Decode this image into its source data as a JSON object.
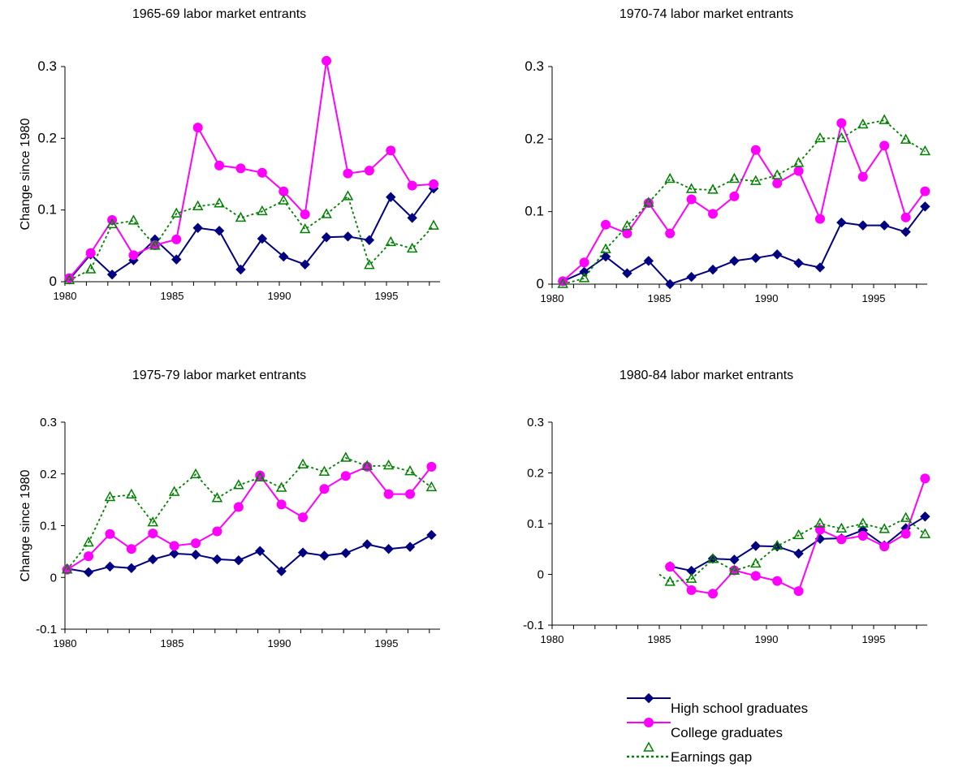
{
  "colors": {
    "high_school": "#000080",
    "college": "#FF00FF",
    "gap": "#008000",
    "axis": "#000000"
  },
  "legend": {
    "items": [
      {
        "key": "hs",
        "label": "High school graduates"
      },
      {
        "key": "col",
        "label": "College graduates"
      },
      {
        "key": "gap",
        "label": "Earnings gap"
      }
    ]
  },
  "chart_data": [
    {
      "type": "line",
      "title": "1965-69 labor market entrants",
      "ylabel": "Change since 1980",
      "xlabel": "",
      "xlim": [
        1980,
        1997.5
      ],
      "ylim": [
        0,
        0.3
      ],
      "yticks": [
        0,
        0.1,
        0.2,
        0.3
      ],
      "ytick_labels": [
        "0",
        "0.1",
        "0.2",
        "0.3"
      ],
      "xticks": [
        1980,
        1985,
        1990,
        1995
      ],
      "grid": false,
      "legend": "bottom-right",
      "series": [
        {
          "key": "hs",
          "name": "High school graduates",
          "x": [
            1980.2,
            1981.2,
            1982.2,
            1983.2,
            1984.2,
            1985.2,
            1986.2,
            1987.2,
            1988.2,
            1989.2,
            1990.2,
            1991.2,
            1992.2,
            1993.2,
            1994.2,
            1995.2,
            1996.2,
            1997.2
          ],
          "y": [
            0.003,
            0.038,
            0.01,
            0.03,
            0.059,
            0.031,
            0.075,
            0.071,
            0.017,
            0.06,
            0.035,
            0.024,
            0.062,
            0.063,
            0.058,
            0.118,
            0.089,
            0.13
          ]
        },
        {
          "key": "col",
          "name": "College graduates",
          "x": [
            1980.2,
            1981.2,
            1982.2,
            1983.2,
            1984.2,
            1985.2,
            1986.2,
            1987.2,
            1988.2,
            1989.2,
            1990.2,
            1991.2,
            1992.2,
            1993.2,
            1994.2,
            1995.2,
            1996.2,
            1997.2
          ],
          "y": [
            0.005,
            0.04,
            0.086,
            0.037,
            0.051,
            0.059,
            0.215,
            0.162,
            0.158,
            0.152,
            0.126,
            0.094,
            0.308,
            0.151,
            0.155,
            0.183,
            0.134,
            0.136
          ]
        },
        {
          "key": "gap",
          "name": "Earnings gap",
          "x": [
            1980.2,
            1981.2,
            1982.2,
            1983.2,
            1984.2,
            1985.2,
            1986.2,
            1987.2,
            1988.2,
            1989.2,
            1990.2,
            1991.2,
            1992.2,
            1993.2,
            1994.2,
            1995.2,
            1996.2,
            1997.2
          ],
          "y": [
            0.002,
            0.017,
            0.08,
            0.085,
            0.05,
            0.095,
            0.105,
            0.109,
            0.089,
            0.098,
            0.113,
            0.073,
            0.094,
            0.119,
            0.023,
            0.055,
            0.046,
            0.078
          ]
        }
      ]
    },
    {
      "type": "line",
      "title": "1970-74 labor market entrants",
      "ylabel": "",
      "xlabel": "",
      "xlim": [
        1980,
        1997.5
      ],
      "ylim": [
        0,
        0.3
      ],
      "yticks": [
        0,
        0.1,
        0.2,
        0.3
      ],
      "ytick_labels": [
        "0",
        "0.1",
        "0.2",
        "0.3"
      ],
      "xticks": [
        1980,
        1985,
        1990,
        1995
      ],
      "grid": false,
      "series": [
        {
          "key": "hs",
          "name": "High school graduates",
          "x": [
            1980.5,
            1981.5,
            1982.5,
            1983.5,
            1984.5,
            1985.5,
            1986.5,
            1987.5,
            1988.5,
            1989.5,
            1990.5,
            1991.5,
            1992.5,
            1993.5,
            1994.5,
            1995.5,
            1996.5,
            1997.4
          ],
          "y": [
            0.004,
            0.017,
            0.038,
            0.015,
            0.032,
            0.0,
            0.01,
            0.02,
            0.032,
            0.036,
            0.041,
            0.029,
            0.023,
            0.085,
            0.081,
            0.081,
            0.072,
            0.107
          ]
        },
        {
          "key": "col",
          "name": "College graduates",
          "x": [
            1980.5,
            1981.5,
            1982.5,
            1983.5,
            1984.5,
            1985.5,
            1986.5,
            1987.5,
            1988.5,
            1989.5,
            1990.5,
            1991.5,
            1992.5,
            1993.5,
            1994.5,
            1995.5,
            1996.5,
            1997.4
          ],
          "y": [
            0.004,
            0.03,
            0.082,
            0.07,
            0.112,
            0.07,
            0.117,
            0.097,
            0.121,
            0.185,
            0.139,
            0.156,
            0.09,
            0.222,
            0.148,
            0.191,
            0.092,
            0.128
          ]
        },
        {
          "key": "gap",
          "name": "Earnings gap",
          "x": [
            1980.5,
            1981.5,
            1982.5,
            1983.5,
            1984.5,
            1985.5,
            1986.5,
            1987.5,
            1988.5,
            1989.5,
            1990.5,
            1991.5,
            1992.5,
            1993.5,
            1994.5,
            1995.5,
            1996.5,
            1997.4
          ],
          "y": [
            0.0,
            0.008,
            0.048,
            0.08,
            0.112,
            0.145,
            0.131,
            0.13,
            0.145,
            0.142,
            0.15,
            0.167,
            0.201,
            0.201,
            0.22,
            0.226,
            0.199,
            0.183
          ]
        }
      ]
    },
    {
      "type": "line",
      "title": "1975-79 labor market entrants",
      "ylabel": "Change since 1980",
      "xlabel": "",
      "xlim": [
        1980,
        1997.5
      ],
      "ylim": [
        -0.1,
        0.3
      ],
      "yticks": [
        -0.1,
        0,
        0.1,
        0.2,
        0.3
      ],
      "ytick_labels": [
        "-0.1",
        "0",
        "0.1",
        "0.2",
        "0.3"
      ],
      "xticks": [
        1980,
        1985,
        1990,
        1995
      ],
      "grid": false,
      "series": [
        {
          "key": "hs",
          "name": "High school graduates",
          "x": [
            1980.1,
            1981.1,
            1982.1,
            1983.1,
            1984.1,
            1985.1,
            1986.1,
            1987.1,
            1988.1,
            1989.1,
            1990.1,
            1991.1,
            1992.1,
            1993.1,
            1994.1,
            1995.1,
            1996.1,
            1997.1
          ],
          "y": [
            0.017,
            0.01,
            0.021,
            0.018,
            0.035,
            0.046,
            0.044,
            0.035,
            0.033,
            0.051,
            0.012,
            0.048,
            0.042,
            0.047,
            0.064,
            0.055,
            0.059,
            0.082
          ]
        },
        {
          "key": "col",
          "name": "College graduates",
          "x": [
            1980.1,
            1981.1,
            1982.1,
            1983.1,
            1984.1,
            1985.1,
            1986.1,
            1987.1,
            1988.1,
            1989.1,
            1990.1,
            1991.1,
            1992.1,
            1993.1,
            1994.1,
            1995.1,
            1996.1,
            1997.1
          ],
          "y": [
            0.015,
            0.041,
            0.084,
            0.055,
            0.085,
            0.061,
            0.066,
            0.089,
            0.136,
            0.197,
            0.141,
            0.116,
            0.171,
            0.196,
            0.214,
            0.161,
            0.161,
            0.214
          ]
        },
        {
          "key": "gap",
          "name": "Earnings gap",
          "x": [
            1980.1,
            1981.1,
            1982.1,
            1983.1,
            1984.1,
            1985.1,
            1986.1,
            1987.1,
            1988.1,
            1989.1,
            1990.1,
            1991.1,
            1992.1,
            1993.1,
            1994.1,
            1995.1,
            1996.1,
            1997.1
          ],
          "y": [
            0.015,
            0.067,
            0.155,
            0.16,
            0.106,
            0.165,
            0.199,
            0.153,
            0.178,
            0.193,
            0.173,
            0.218,
            0.204,
            0.231,
            0.215,
            0.216,
            0.205,
            0.174
          ]
        }
      ]
    },
    {
      "type": "line",
      "title": "1980-84 labor market entrants",
      "ylabel": "",
      "xlabel": "",
      "xlim": [
        1980,
        1997.5
      ],
      "ylim": [
        -0.1,
        0.3
      ],
      "yticks": [
        -0.1,
        0,
        0.1,
        0.2,
        0.3
      ],
      "ytick_labels": [
        "-0.1",
        "0",
        "0.1",
        "0.2",
        "0.3"
      ],
      "xticks": [
        1980,
        1985,
        1990,
        1995
      ],
      "grid": false,
      "series": [
        {
          "key": "hs",
          "name": "High school graduates",
          "x": [
            1985.5,
            1986.5,
            1987.5,
            1988.5,
            1989.5,
            1990.5,
            1991.5,
            1992.5,
            1993.5,
            1994.5,
            1995.5,
            1996.5,
            1997.4
          ],
          "y": [
            0.016,
            0.007,
            0.031,
            0.029,
            0.056,
            0.055,
            0.041,
            0.07,
            0.071,
            0.087,
            0.057,
            0.091,
            0.114
          ]
        },
        {
          "key": "col",
          "name": "College graduates",
          "x": [
            1985.5,
            1986.5,
            1987.5,
            1988.5,
            1989.5,
            1990.5,
            1991.5,
            1992.5,
            1993.5,
            1994.5,
            1995.5,
            1996.5,
            1997.4
          ],
          "y": [
            0.015,
            -0.031,
            -0.038,
            0.008,
            -0.003,
            -0.013,
            -0.033,
            0.088,
            0.069,
            0.076,
            0.055,
            0.08,
            0.189
          ]
        },
        {
          "key": "gap",
          "name": "Earnings gap",
          "x": [
            1985.0,
            1985.5,
            1986.5,
            1987.5,
            1988.5,
            1989.5,
            1990.5,
            1991.5,
            1992.5,
            1993.5,
            1994.5,
            1995.5,
            1996.5,
            1997.4
          ],
          "y": [
            0.0,
            -0.015,
            -0.009,
            0.03,
            0.007,
            0.021,
            0.056,
            0.077,
            0.1,
            0.09,
            0.1,
            0.089,
            0.111,
            0.079
          ]
        }
      ]
    }
  ]
}
